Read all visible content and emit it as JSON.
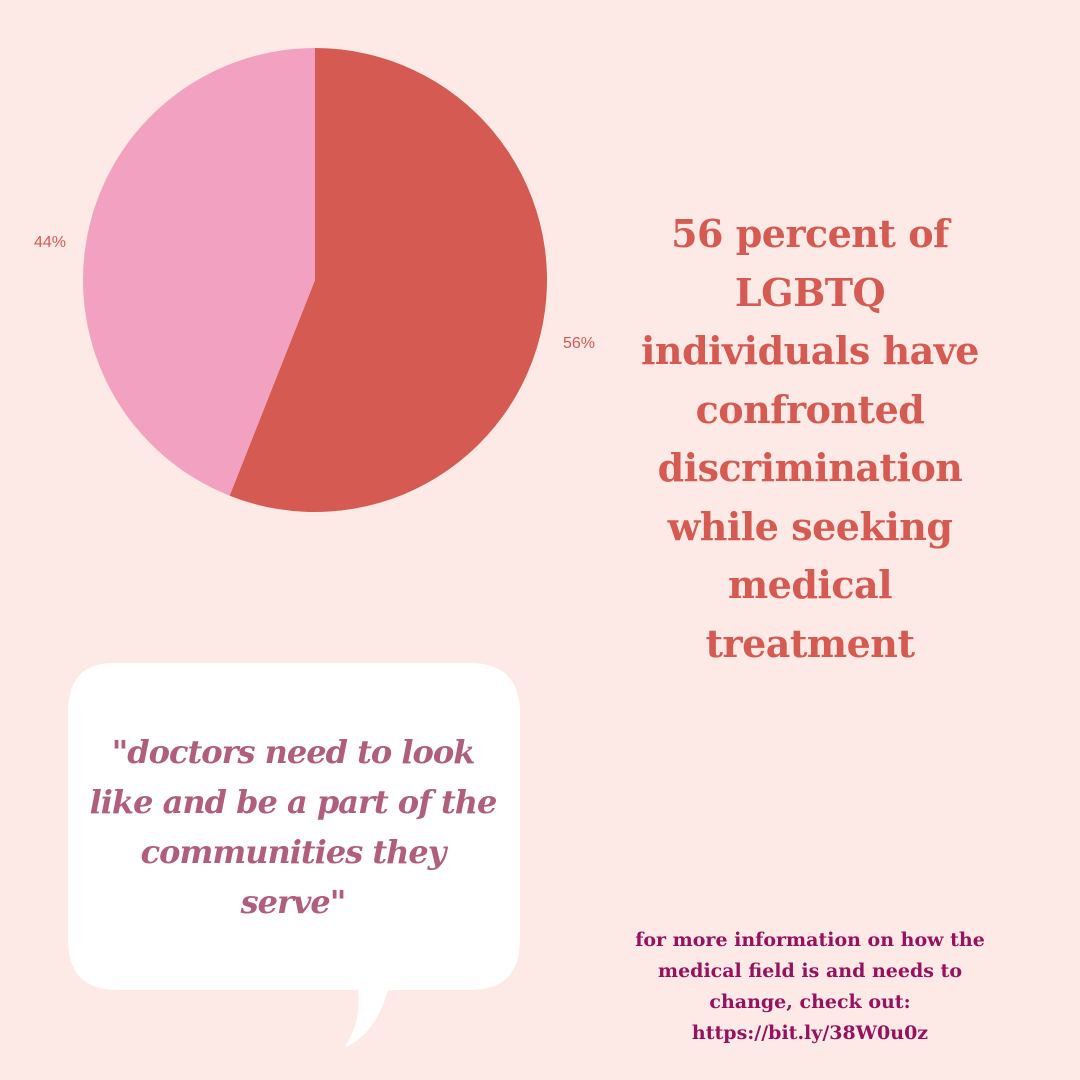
{
  "chart_data": {
    "type": "pie",
    "slices": [
      {
        "value": 56,
        "label": "56%",
        "color": "#d55a52"
      },
      {
        "value": 44,
        "label": "44%",
        "color": "#f2a2c0"
      }
    ],
    "start": "12 o'clock",
    "direction": "clockwise"
  },
  "headline": "56 percent of LGBTQ individuals have confronted discrimination while seeking medical treatment",
  "quote": "\"doctors need to look like and be a part of the communities they serve\"",
  "info": {
    "text": "for more information on how the medical field is and needs to change, check out:",
    "link": "https://bit.ly/38W0u0z"
  },
  "colors": {
    "background": "#fdeae6",
    "headline": "#d55a52",
    "quote": "#b05e7c",
    "info": "#96125e",
    "bubble": "#ffffff"
  }
}
